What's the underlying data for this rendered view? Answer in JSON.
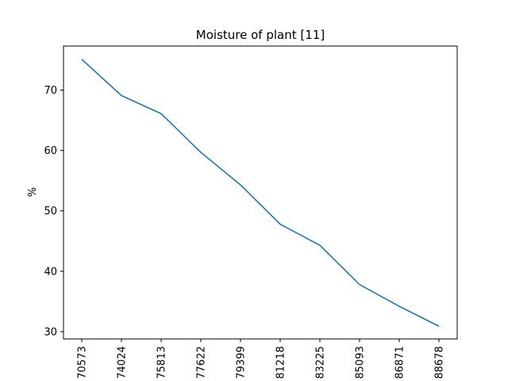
{
  "chart_data": {
    "type": "line",
    "title": "Moisture of plant [11]",
    "xlabel": "",
    "ylabel": "%",
    "categories": [
      "70573",
      "74024",
      "75813",
      "77622",
      "79399",
      "81218",
      "83225",
      "85093",
      "86871",
      "88678"
    ],
    "series": [
      {
        "values": [
          75.1,
          69.1,
          66.1,
          59.7,
          54.3,
          47.8,
          44.3,
          37.8,
          34.2,
          30.9
        ]
      }
    ],
    "yticks": [
      30,
      40,
      50,
      60,
      70
    ],
    "ylim": [
      28.8,
      77.3
    ],
    "grid": false,
    "line_color": "#1f77b4"
  }
}
